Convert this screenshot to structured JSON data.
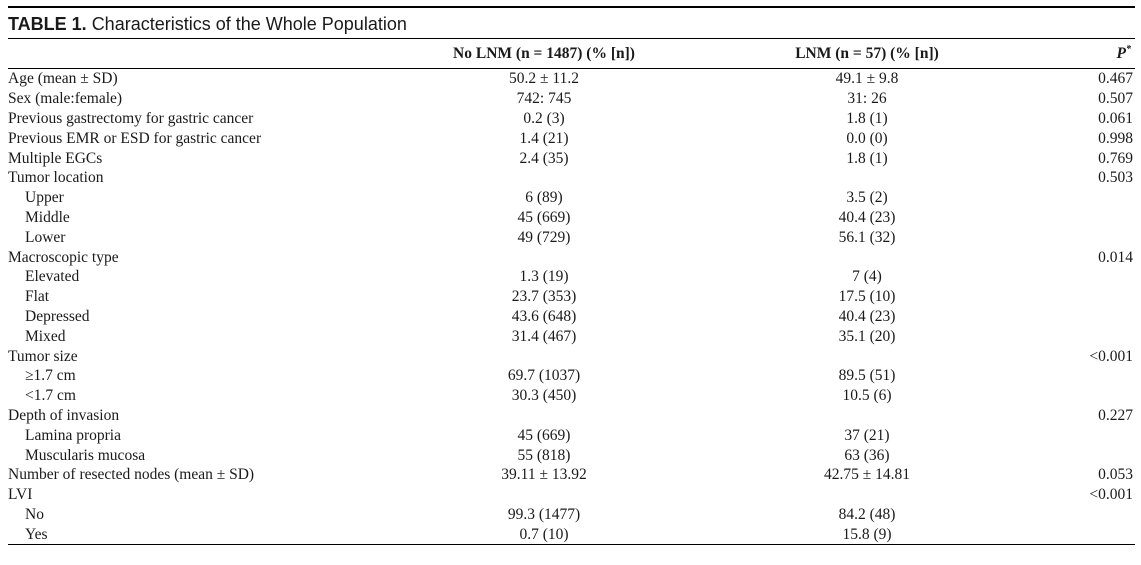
{
  "table": {
    "label": "TABLE 1.",
    "title": "Characteristics of the Whole Population",
    "headers": {
      "col0": "",
      "col1": "No LNM (n = 1487) (% [n])",
      "col2": "LNM (n = 57) (% [n])",
      "col3": "P",
      "col3_mark": "*"
    },
    "rows": [
      {
        "label": "Age (mean ± SD)",
        "indent": false,
        "no_lnm": "50.2 ± 11.2",
        "lnm": "49.1 ± 9.8",
        "p": "0.467"
      },
      {
        "label": "Sex (male:female)",
        "indent": false,
        "no_lnm": "742: 745",
        "lnm": "31: 26",
        "p": "0.507"
      },
      {
        "label": "Previous gastrectomy for gastric cancer",
        "indent": false,
        "no_lnm": "0.2 (3)",
        "lnm": "1.8 (1)",
        "p": "0.061"
      },
      {
        "label": "Previous EMR or ESD for gastric cancer",
        "indent": false,
        "no_lnm": "1.4 (21)",
        "lnm": "0.0 (0)",
        "p": "0.998"
      },
      {
        "label": "Multiple EGCs",
        "indent": false,
        "no_lnm": "2.4 (35)",
        "lnm": "1.8 (1)",
        "p": "0.769"
      },
      {
        "label": "Tumor location",
        "indent": false,
        "no_lnm": "",
        "lnm": "",
        "p": "0.503"
      },
      {
        "label": "Upper",
        "indent": true,
        "no_lnm": "6 (89)",
        "lnm": "3.5 (2)",
        "p": ""
      },
      {
        "label": "Middle",
        "indent": true,
        "no_lnm": "45 (669)",
        "lnm": "40.4 (23)",
        "p": ""
      },
      {
        "label": "Lower",
        "indent": true,
        "no_lnm": "49 (729)",
        "lnm": "56.1 (32)",
        "p": ""
      },
      {
        "label": "Macroscopic type",
        "indent": false,
        "no_lnm": "",
        "lnm": "",
        "p": "0.014"
      },
      {
        "label": "Elevated",
        "indent": true,
        "no_lnm": "1.3 (19)",
        "lnm": "7 (4)",
        "p": ""
      },
      {
        "label": "Flat",
        "indent": true,
        "no_lnm": "23.7 (353)",
        "lnm": "17.5 (10)",
        "p": ""
      },
      {
        "label": "Depressed",
        "indent": true,
        "no_lnm": "43.6 (648)",
        "lnm": "40.4 (23)",
        "p": ""
      },
      {
        "label": "Mixed",
        "indent": true,
        "no_lnm": "31.4 (467)",
        "lnm": "35.1 (20)",
        "p": ""
      },
      {
        "label": "Tumor size",
        "indent": false,
        "no_lnm": "",
        "lnm": "",
        "p": "<0.001"
      },
      {
        "label": "≥1.7 cm",
        "indent": true,
        "no_lnm": "69.7 (1037)",
        "lnm": "89.5 (51)",
        "p": ""
      },
      {
        "label": "<1.7 cm",
        "indent": true,
        "no_lnm": "30.3 (450)",
        "lnm": "10.5 (6)",
        "p": ""
      },
      {
        "label": "Depth of invasion",
        "indent": false,
        "no_lnm": "",
        "lnm": "",
        "p": "0.227"
      },
      {
        "label": "Lamina propria",
        "indent": true,
        "no_lnm": "45 (669)",
        "lnm": "37 (21)",
        "p": ""
      },
      {
        "label": "Muscularis mucosa",
        "indent": true,
        "no_lnm": "55 (818)",
        "lnm": "63 (36)",
        "p": ""
      },
      {
        "label": "Number of resected nodes (mean ± SD)",
        "indent": false,
        "no_lnm": "39.11 ± 13.92",
        "lnm": "42.75 ± 14.81",
        "p": "0.053"
      },
      {
        "label": "LVI",
        "indent": false,
        "no_lnm": "",
        "lnm": "",
        "p": "<0.001"
      },
      {
        "label": "No",
        "indent": true,
        "no_lnm": "99.3 (1477)",
        "lnm": "84.2 (48)",
        "p": ""
      },
      {
        "label": "Yes",
        "indent": true,
        "no_lnm": "0.7 (10)",
        "lnm": "15.8 (9)",
        "p": ""
      }
    ]
  }
}
